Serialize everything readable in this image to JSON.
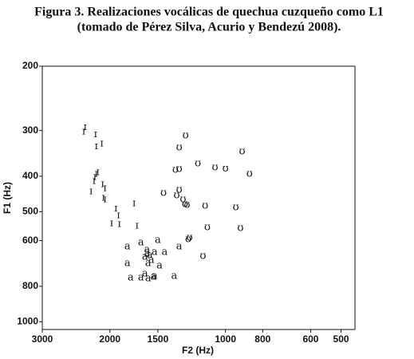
{
  "chart_data": {
    "type": "scatter",
    "title": [
      "Figura 3. Realizaciones vocálicas de quechua cuzqueño como L1",
      "(tomado de Pérez Silva, Acurio y Bendezú 2008)."
    ],
    "xlabel": "F2 (Hz)",
    "ylabel": "F1 (Hz)",
    "xlim": [
      3000,
      460
    ],
    "ylim": [
      200,
      1050
    ],
    "xscale": "log",
    "yscale": "log",
    "x_reversed": true,
    "y_reversed": true,
    "xticks": [
      3000,
      2000,
      1500,
      1000,
      800,
      600,
      500
    ],
    "yticks": [
      200,
      300,
      400,
      500,
      600,
      800,
      1000
    ],
    "color": "#111111",
    "series": [
      {
        "name": "ɪ",
        "x": [
          2320,
          2340,
          2180,
          2100,
          2170,
          2170,
          2150,
          2190,
          2200,
          2090,
          2060,
          2240,
          2080,
          2060,
          1930,
          1900,
          1730,
          1980,
          1890,
          1700
        ],
        "values": [
          294,
          302,
          307,
          326,
          331,
          394,
          390,
          402,
          412,
          421,
          431,
          440,
          458,
          463,
          491,
          512,
          475,
          538,
          541,
          546
        ]
      },
      {
        "name": "ʊ",
        "x": [
          1270,
          1320,
          1180,
          1350,
          1320,
          1065,
          905,
          866,
          1000,
          1450,
          1340,
          1320,
          1290,
          1275,
          1260,
          1130,
          940,
          1115,
          914,
          1250,
          1240,
          1145
        ],
        "values": [
          310,
          334,
          369,
          384,
          382,
          379,
          342,
          394,
          381,
          445,
          451,
          436,
          463,
          477,
          479,
          482,
          487,
          552,
          555,
          595,
          589,
          661
        ]
      },
      {
        "name": "a",
        "x": [
          1800,
          1660,
          1500,
          1600,
          1600,
          1620,
          1575,
          1560,
          1530,
          1440,
          1800,
          1590,
          1485,
          1320,
          1620,
          1765,
          1660,
          1590,
          1540,
          1530,
          1360
        ],
        "values": [
          623,
          607,
          598,
          635,
          651,
          665,
          658,
          678,
          645,
          645,
          692,
          692,
          702,
          623,
          739,
          758,
          758,
          762,
          754,
          750,
          750
        ]
      }
    ]
  }
}
